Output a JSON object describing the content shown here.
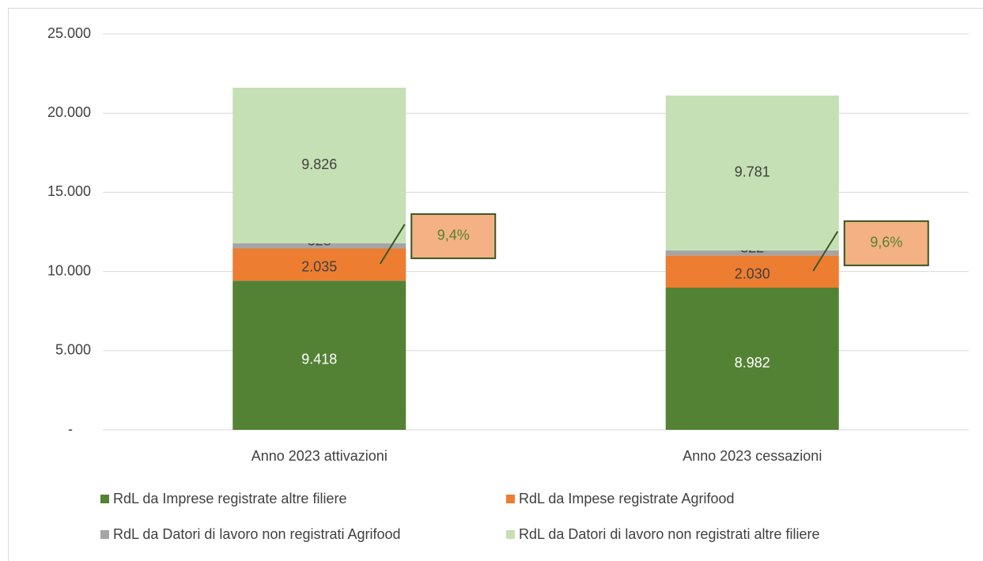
{
  "chart_data": {
    "type": "stacked_bar",
    "categories": [
      "Anno 2023 attivazioni",
      "Anno 2023 cessazioni"
    ],
    "series": [
      {
        "name": "RdL da Imprese registrate altre filiere",
        "color": "#548235",
        "values": [
          9418,
          8982
        ],
        "value_labels": [
          "9.418",
          "8.982"
        ]
      },
      {
        "name": "RdL da Impese registrate Agrifood",
        "color": "#ed7d31",
        "values": [
          2035,
          2030
        ],
        "value_labels": [
          "2.035",
          "2.030"
        ]
      },
      {
        "name": "RdL da Datori di lavoro non registrati Agrifood",
        "color": "#a5a5a5",
        "values": [
          328,
          322
        ],
        "value_labels": [
          "328",
          "322"
        ]
      },
      {
        "name": "RdL da Datori di lavoro non registrati altre filiere",
        "color": "#c5e0b4",
        "values": [
          9826,
          9781
        ],
        "value_labels": [
          "9.826",
          "9.781"
        ]
      }
    ],
    "ylim": [
      0,
      25000
    ],
    "yticks": [
      {
        "value": 0,
        "label": "-"
      },
      {
        "value": 5000,
        "label": "5.000"
      },
      {
        "value": 10000,
        "label": "10.000"
      },
      {
        "value": 15000,
        "label": "15.000"
      },
      {
        "value": 20000,
        "label": "20.000"
      },
      {
        "value": 25000,
        "label": "25.000"
      }
    ],
    "grid": true,
    "annotations": [
      "9,4%",
      "9,6%"
    ],
    "legend": "bottom"
  }
}
